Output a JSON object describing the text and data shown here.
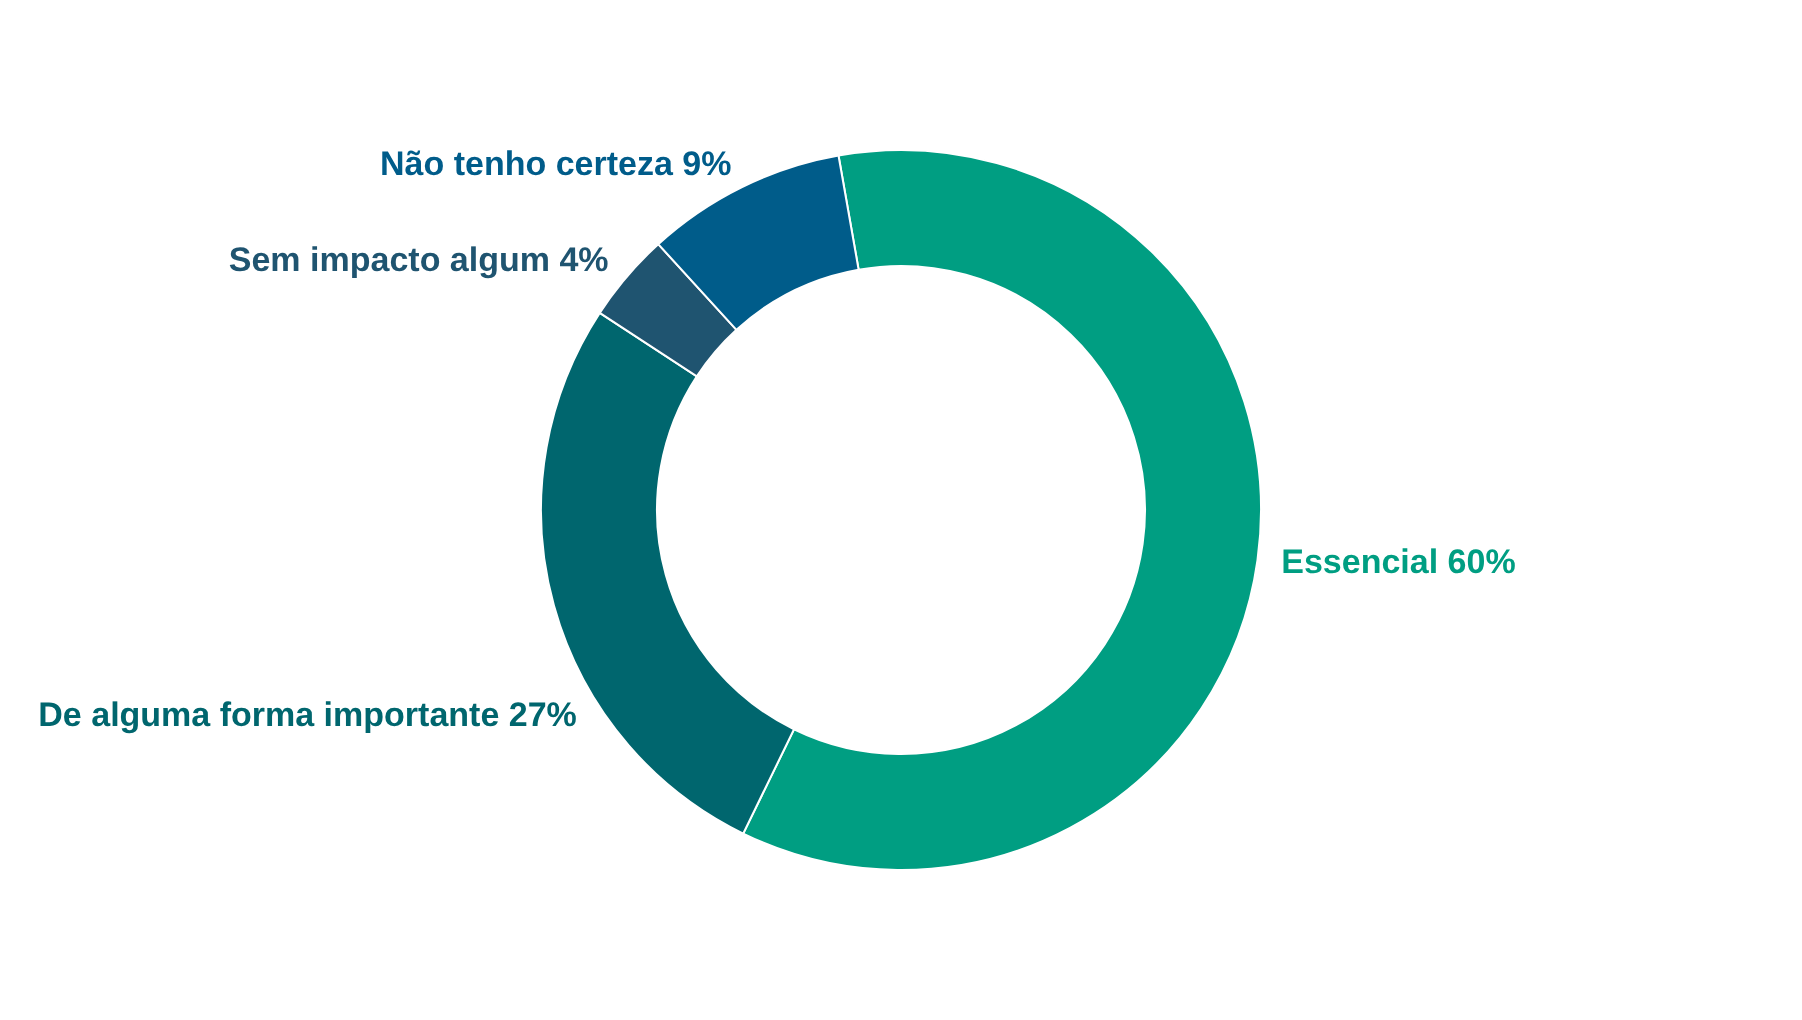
{
  "chart_data": {
    "type": "donut",
    "categories": [
      "Essencial",
      "De alguma forma importante",
      "Sem impacto algum",
      "Não tenho certeza"
    ],
    "values": [
      60,
      27,
      4,
      9
    ],
    "colors": [
      "#009e82",
      "#00666e",
      "#1f5470",
      "#005c8a"
    ],
    "value_labels": [
      "60%",
      "27%",
      "4%",
      "9%"
    ]
  }
}
